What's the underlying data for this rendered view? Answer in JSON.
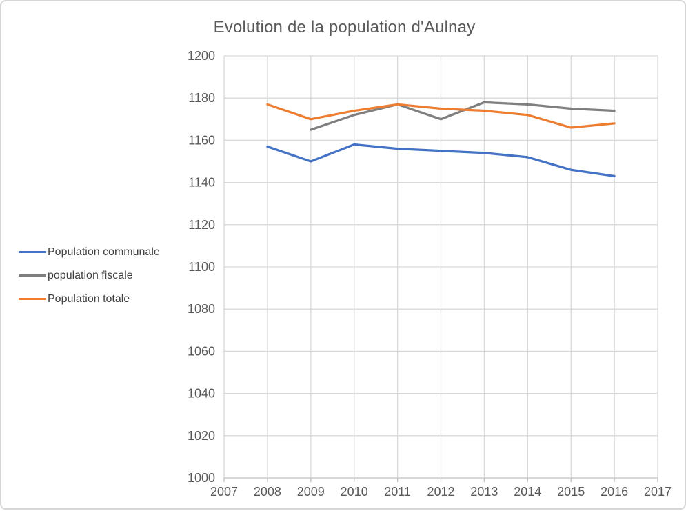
{
  "chart_data": {
    "type": "line",
    "title": "Evolution de la population d'Aulnay",
    "xlabel": "",
    "ylabel": "",
    "x_axis": {
      "range": [
        2007,
        2017
      ],
      "ticks": [
        2007,
        2008,
        2009,
        2010,
        2011,
        2012,
        2013,
        2014,
        2015,
        2016,
        2017
      ]
    },
    "y_axis": {
      "range": [
        1000,
        1200
      ],
      "ticks": [
        1000,
        1020,
        1040,
        1060,
        1080,
        1100,
        1120,
        1140,
        1160,
        1180,
        1200
      ]
    },
    "grid": true,
    "legend_position": "left",
    "series": [
      {
        "name": "Population communale",
        "color": "#4472C4",
        "x": [
          2008,
          2009,
          2010,
          2011,
          2012,
          2013,
          2014,
          2015,
          2016
        ],
        "values": [
          1157,
          1150,
          1158,
          1156,
          1155,
          1154,
          1152,
          1146,
          1143
        ]
      },
      {
        "name": "population fiscale",
        "color": "#7F7F7F",
        "x": [
          2009,
          2010,
          2011,
          2012,
          2013,
          2014,
          2015,
          2016
        ],
        "values": [
          1165,
          1172,
          1177,
          1170,
          1178,
          1177,
          1175,
          1174
        ]
      },
      {
        "name": "Population totale",
        "color": "#ED7D31",
        "x": [
          2008,
          2009,
          2010,
          2011,
          2012,
          2013,
          2014,
          2015,
          2016
        ],
        "values": [
          1177,
          1170,
          1174,
          1177,
          1175,
          1174,
          1172,
          1166,
          1168
        ]
      }
    ],
    "colors": {
      "grid_line": "#d9d9d9",
      "axis_line": "#bfbfbf",
      "tick_mark": "#bfbfbf",
      "axis_label_text": "#595959",
      "title_text": "#595959",
      "legend_text": "#404040",
      "frame_border": "#d6d6d6"
    }
  }
}
